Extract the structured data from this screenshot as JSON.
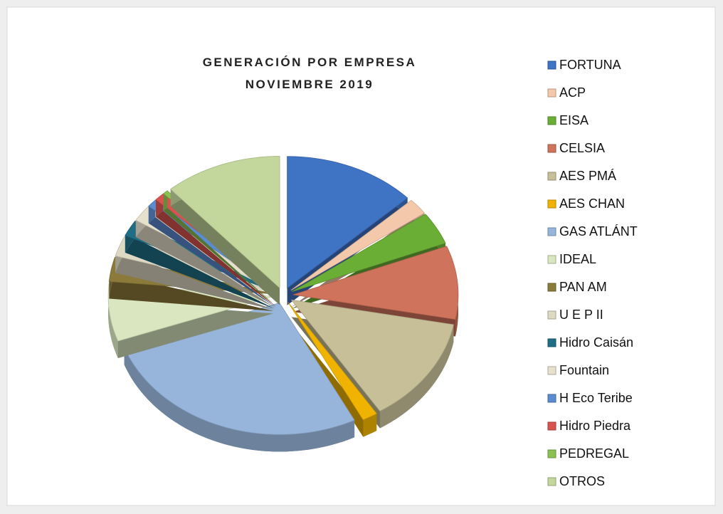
{
  "chart_data": {
    "type": "pie",
    "title": [
      "GENERACIÓN POR EMPRESA",
      "NOVIEMBRE 2019"
    ],
    "categories": [
      "FORTUNA",
      "ACP",
      "EISA",
      "CELSIA",
      "AES PMÁ",
      "AES CHAN",
      "GAS ATLÁNT",
      "IDEAL",
      "PAN AM",
      "U E P II",
      "Hidro Caisán",
      "Fountain",
      "H Eco Teribe",
      "Hidro Piedra",
      "PEDREGAL",
      "OTROS"
    ],
    "values": [
      13,
      2,
      4,
      9,
      13,
      1.5,
      27,
      7,
      3,
      2.5,
      2,
      2,
      1,
      1,
      0.5,
      11.5
    ],
    "colors": [
      "#3f73c4",
      "#f4c9ab",
      "#6aae35",
      "#d0735c",
      "#c7bf98",
      "#f0b400",
      "#97b5da",
      "#d9e6bf",
      "#8c7a3a",
      "#ddd9c3",
      "#1f6e85",
      "#e6e0cc",
      "#5b8bd0",
      "#d9534f",
      "#8cc152",
      "#c3d69b"
    ],
    "legend": "right"
  }
}
